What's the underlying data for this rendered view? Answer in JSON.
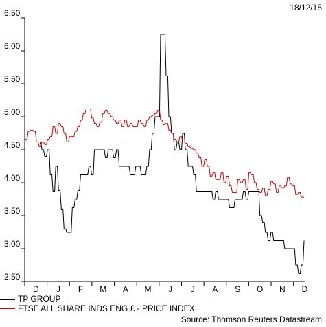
{
  "chart_data": {
    "type": "line",
    "date": "18/12/15",
    "x_tick_labels": [
      "D",
      "J",
      "F",
      "M",
      "A",
      "M",
      "J",
      "J",
      "A",
      "S",
      "O",
      "N",
      "D"
    ],
    "y_tick_labels": [
      "2.50",
      "3.00",
      "3.50",
      "4.00",
      "4.50",
      "5.00",
      "5.50",
      "6.00",
      "6.50"
    ],
    "ylim": [
      2.5,
      6.5
    ],
    "grid": false,
    "legend_position": "bottom-left",
    "series": [
      {
        "name": "TP GROUP",
        "color": "#000000",
        "values": [
          4.62,
          4.62,
          4.62,
          4.62,
          4.62,
          4.62,
          4.5,
          4.4,
          4.5,
          4.12,
          3.87,
          4.25,
          3.88,
          3.6,
          3.3,
          3.25,
          3.25,
          3.62,
          3.75,
          3.88,
          4.12,
          4.12,
          4.12,
          4.25,
          4.12,
          4.5,
          4.5,
          4.5,
          4.5,
          4.38,
          4.5,
          4.5,
          4.38,
          4.5,
          4.25,
          4.25,
          4.25,
          4.25,
          4.12,
          4.12,
          4.25,
          4.25,
          4.12,
          4.12,
          4.25,
          4.5,
          4.75,
          5.0,
          5.0,
          6.25,
          6.25,
          5.62,
          5.0,
          4.75,
          4.5,
          4.62,
          4.5,
          4.75,
          4.5,
          4.25,
          4.25,
          4.12,
          3.87,
          3.87,
          3.87,
          3.87,
          3.87,
          3.87,
          3.75,
          3.87,
          3.75,
          3.75,
          3.75,
          3.75,
          3.62,
          3.62,
          3.75,
          3.75,
          3.75,
          3.87,
          3.75,
          3.87,
          3.87,
          3.87,
          3.87,
          3.5,
          3.4,
          3.25,
          3.12,
          3.25,
          3.12,
          3.12,
          3.12,
          3.12,
          3.0,
          3.0,
          3.0,
          3.0,
          2.75,
          2.62,
          2.75,
          3.12
        ]
      },
      {
        "name": "FTSE ALL SHARE INDS ENG £ - PRICE INDEX",
        "color": "#cc0000",
        "values": [
          4.65,
          4.78,
          4.8,
          4.78,
          4.62,
          4.55,
          4.62,
          4.58,
          4.65,
          4.7,
          4.85,
          4.75,
          4.9,
          4.85,
          4.75,
          4.62,
          4.7,
          4.7,
          4.78,
          4.85,
          4.95,
          5.05,
          5.12,
          5.12,
          4.98,
          4.9,
          4.85,
          4.92,
          5.05,
          5.1,
          5.05,
          5.0,
          4.95,
          4.9,
          4.95,
          4.85,
          4.95,
          4.85,
          4.9,
          4.85,
          4.85,
          4.95,
          4.9,
          4.85,
          4.95,
          5.0,
          5.02,
          5.05,
          5.1,
          4.95,
          4.88,
          4.9,
          4.8,
          4.75,
          4.65,
          4.62,
          4.7,
          4.62,
          4.6,
          4.55,
          4.52,
          4.5,
          4.45,
          4.38,
          4.25,
          4.35,
          4.25,
          4.1,
          4.15,
          4.05,
          4.05,
          4.15,
          4.0,
          4.1,
          3.95,
          3.85,
          3.85,
          4.05,
          4.0,
          4.05,
          3.9,
          4.15,
          4.12,
          4.0,
          3.9,
          3.85,
          3.92,
          3.8,
          3.9,
          4.02,
          3.98,
          3.85,
          3.95,
          3.92,
          3.95,
          4.08,
          3.98,
          3.95,
          3.82,
          3.85,
          3.78,
          3.78
        ]
      }
    ],
    "source": "Source: Thomson Reuters Datastream"
  }
}
